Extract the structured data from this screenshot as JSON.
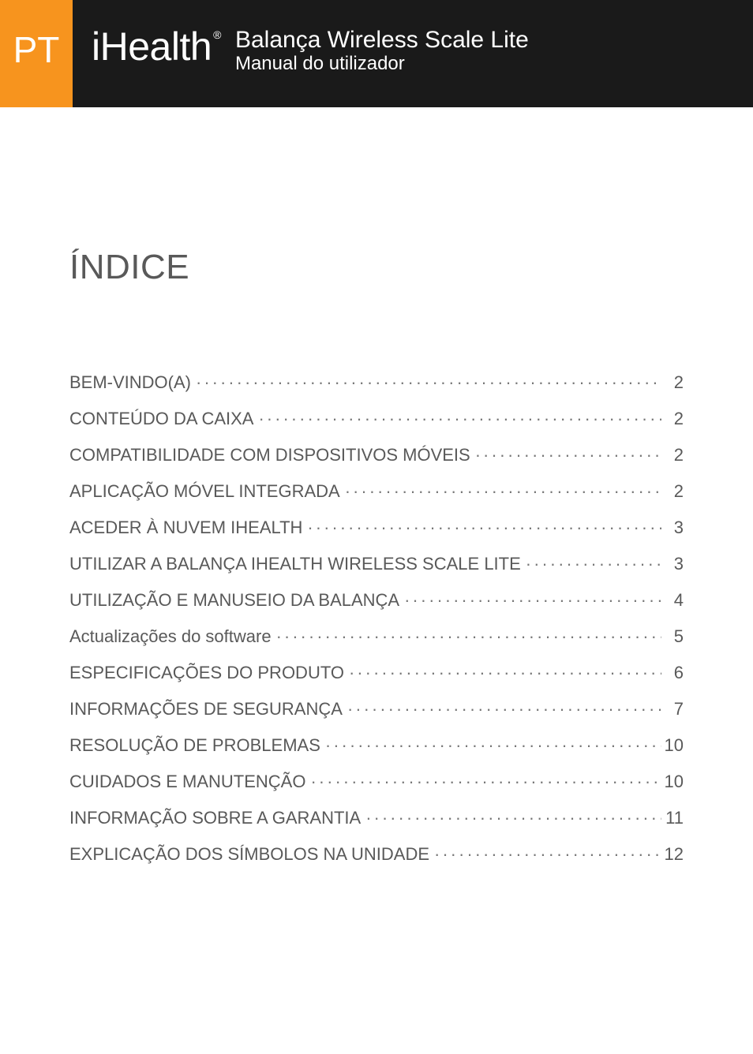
{
  "header": {
    "language_badge": "PT",
    "brand": "iHealth",
    "brand_mark": "®",
    "product_title": "Balança Wireless Scale Lite",
    "subtitle": "Manual do utilizador"
  },
  "toc": {
    "heading": "ÍNDICE",
    "entries": [
      {
        "label": "BEM-VINDO(A)",
        "page": "2"
      },
      {
        "label": "CONTEÚDO DA CAIXA",
        "page": "2"
      },
      {
        "label": "COMPATIBILIDADE COM DISPOSITIVOS MÓVEIS",
        "page": "2"
      },
      {
        "label": "APLICAÇÃO MÓVEL INTEGRADA",
        "page": "2"
      },
      {
        "label": "ACEDER À NUVEM IHEALTH",
        "page": "3"
      },
      {
        "label": "UTILIZAR A BALANÇA IHEALTH WIRELESS SCALE LITE",
        "page": "3"
      },
      {
        "label": "UTILIZAÇÃO E MANUSEIO DA BALANÇA",
        "page": "4"
      },
      {
        "label": "Actualizações do software",
        "page": "5"
      },
      {
        "label": "ESPECIFICAÇÕES DO PRODUTO",
        "page": "6"
      },
      {
        "label": "INFORMAÇÕES DE SEGURANÇA",
        "page": "7"
      },
      {
        "label": "RESOLUÇÃO DE PROBLEMAS",
        "page": "10"
      },
      {
        "label": "CUIDADOS E MANUTENÇÃO",
        "page": "10"
      },
      {
        "label": "INFORMAÇÃO SOBRE A GARANTIA",
        "page": "11"
      },
      {
        "label": "EXPLICAÇÃO DOS SÍMBOLOS NA UNIDADE",
        "page": "12"
      }
    ]
  },
  "colors": {
    "header_bg": "#1a1a1a",
    "badge_bg": "#f7941e",
    "text": "#595959",
    "page_bg": "#ffffff"
  }
}
